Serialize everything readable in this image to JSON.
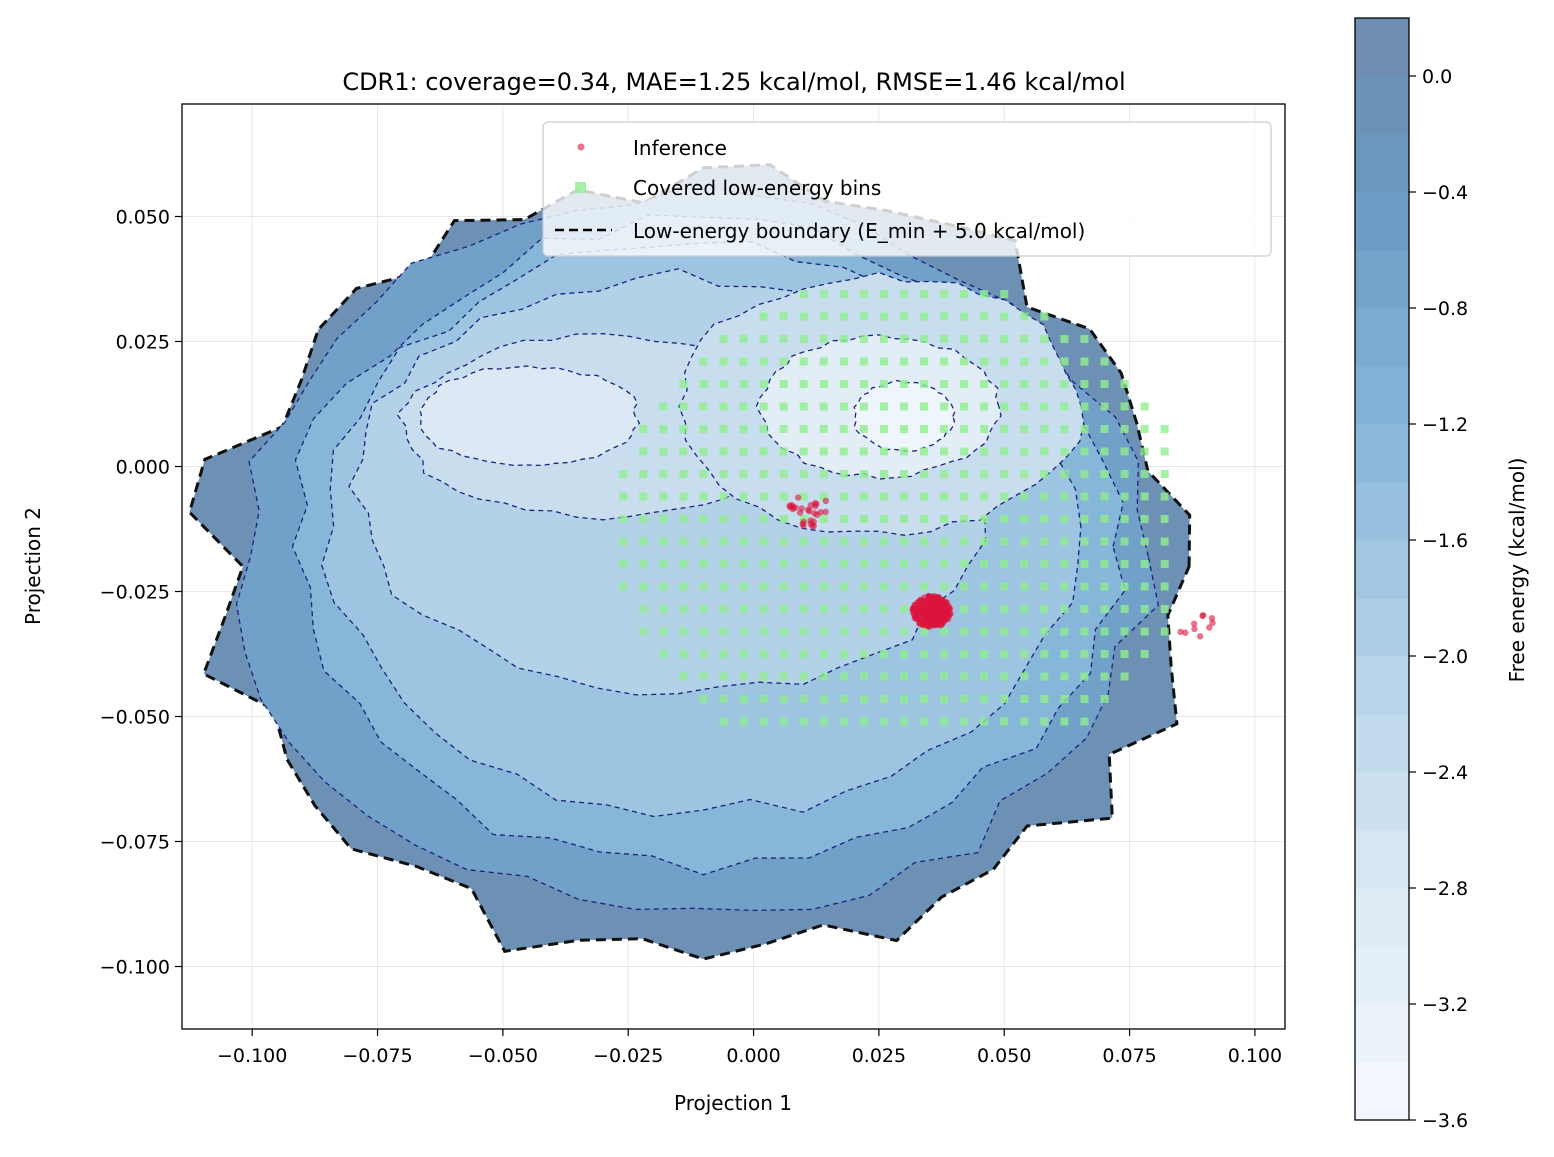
{
  "chart_data": {
    "type": "contour",
    "title": "CDR1: coverage=0.34, MAE=1.25 kcal/mol, RMSE=1.46 kcal/mol",
    "xlabel": "Projection 1",
    "ylabel": "Projection 2",
    "xlim": [
      -0.114,
      0.106
    ],
    "ylim": [
      -0.1125,
      0.0725
    ],
    "x_ticks": [
      -0.1,
      -0.075,
      -0.05,
      -0.025,
      0.0,
      0.025,
      0.05,
      0.075,
      0.1
    ],
    "x_tick_labels": [
      "−0.100",
      "−0.075",
      "−0.050",
      "−0.025",
      "0.000",
      "0.025",
      "0.050",
      "0.075",
      "0.100"
    ],
    "y_ticks": [
      0.05,
      0.025,
      0.0,
      -0.025,
      -0.05,
      -0.075,
      -0.1
    ],
    "y_tick_labels": [
      "0.050",
      "0.025",
      "0.000",
      "−0.025",
      "−0.050",
      "−0.075",
      "−0.100"
    ],
    "grid": true,
    "legend_position": "top-right",
    "legend": [
      {
        "label": "Inference",
        "marker": "dot",
        "color": "#dc143c"
      },
      {
        "label": "Covered low-energy bins",
        "marker": "square",
        "color": "#90ee90"
      },
      {
        "label": "Low-energy boundary (E_min + 5.0 kcal/mol)",
        "marker": "dashed-line",
        "color": "#000000"
      }
    ],
    "colorbar": {
      "label": "Free energy (kcal/mol)",
      "range": [
        -3.6,
        0.2
      ],
      "ticks": [
        0.0,
        -0.4,
        -0.8,
        -1.2,
        -1.6,
        -2.0,
        -2.4,
        -2.8,
        -3.2,
        -3.6
      ],
      "tick_labels": [
        "0.0",
        "−0.4",
        "−0.8",
        "−1.2",
        "−1.6",
        "−2.0",
        "−2.4",
        "−2.8",
        "−3.2",
        "−3.6"
      ],
      "colormap": "Blues_r"
    },
    "energy_levels": [
      {
        "E": 0.0,
        "cx": -0.01,
        "cy": -0.02,
        "rx": 0.097,
        "ry": 0.078
      },
      {
        "E": -0.6,
        "cx": -0.012,
        "cy": -0.018,
        "rx": 0.09,
        "ry": 0.072
      },
      {
        "E": -1.2,
        "cx": -0.01,
        "cy": -0.016,
        "rx": 0.082,
        "ry": 0.065
      },
      {
        "E": -1.6,
        "cx": -0.01,
        "cy": -0.012,
        "rx": 0.074,
        "ry": 0.057
      },
      {
        "E": -2.0,
        "cx": -0.015,
        "cy": -0.004,
        "rx": 0.064,
        "ry": 0.042
      },
      {
        "E": -2.4,
        "cx": -0.03,
        "cy": 0.008,
        "rx": 0.04,
        "ry": 0.018
      },
      {
        "E": -2.4,
        "cx": 0.025,
        "cy": 0.012,
        "rx": 0.04,
        "ry": 0.026
      },
      {
        "E": -2.8,
        "cx": -0.045,
        "cy": 0.01,
        "rx": 0.022,
        "ry": 0.01
      },
      {
        "E": -3.0,
        "cx": 0.025,
        "cy": 0.012,
        "rx": 0.024,
        "ry": 0.014
      },
      {
        "E": -3.4,
        "cx": 0.03,
        "cy": 0.01,
        "rx": 0.01,
        "ry": 0.007
      }
    ],
    "covered_bins": {
      "x_start": -0.026,
      "x_step": 0.004,
      "y_start": 0.039,
      "y_step": -0.0045,
      "color": "#90ee90"
    },
    "inference_clusters": [
      {
        "cx": 0.0355,
        "cy": -0.029,
        "spread": 0.0035,
        "n": 260
      },
      {
        "cx": 0.011,
        "cy": -0.0085,
        "spread": 0.004,
        "n": 28
      },
      {
        "cx": 0.088,
        "cy": -0.031,
        "spread": 0.004,
        "n": 10
      }
    ],
    "inference_color": "#dc143c"
  }
}
